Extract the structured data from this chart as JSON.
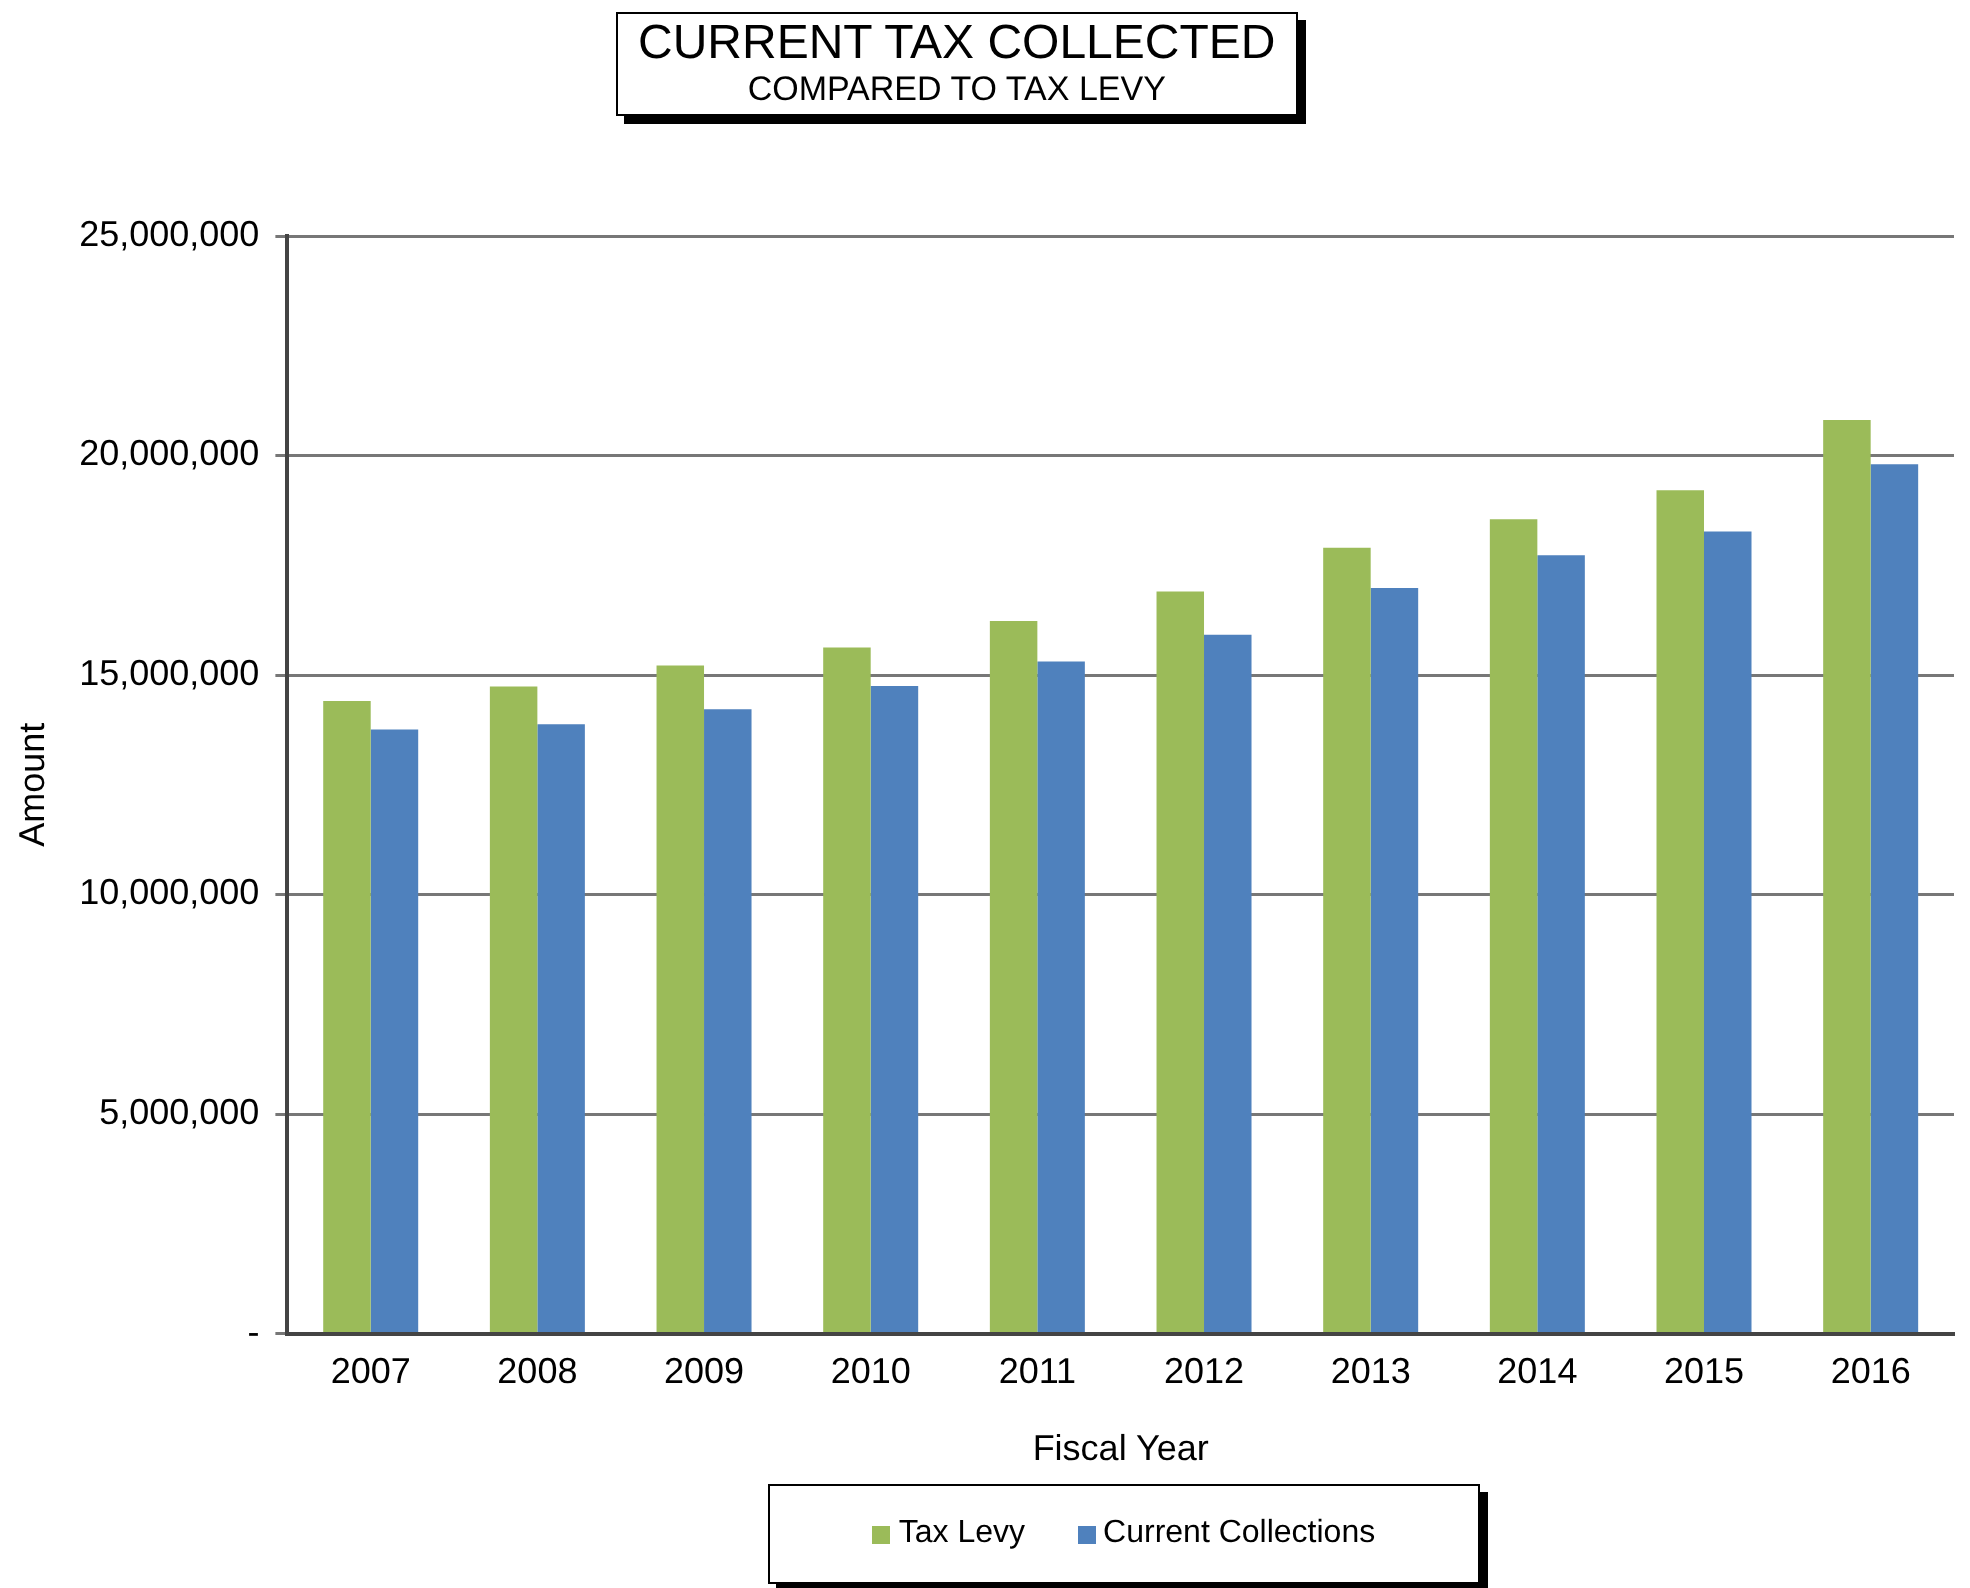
{
  "chart_data": {
    "type": "bar",
    "title": "CURRENT TAX COLLECTED",
    "subtitle": "COMPARED TO TAX LEVY",
    "xlabel": "Fiscal Year",
    "ylabel": "Amount",
    "categories": [
      "2007",
      "2008",
      "2009",
      "2010",
      "2011",
      "2012",
      "2013",
      "2014",
      "2015",
      "2016"
    ],
    "series": [
      {
        "name": "Tax Levy",
        "color": "#9bbb59",
        "values": [
          14410000,
          14740000,
          15220000,
          15630000,
          16230000,
          16900000,
          17900000,
          18550000,
          19210000,
          20810000
        ]
      },
      {
        "name": "Current Collections",
        "color": "#4f81bd",
        "values": [
          13760000,
          13880000,
          14220000,
          14750000,
          15310000,
          15920000,
          16980000,
          17730000,
          18270000,
          19800000
        ]
      }
    ],
    "ylim": [
      0,
      25000000
    ],
    "yticks": [
      {
        "value": 0,
        "label": "-"
      },
      {
        "value": 5000000,
        "label": "5,000,000"
      },
      {
        "value": 10000000,
        "label": "10,000,000"
      },
      {
        "value": 15000000,
        "label": "15,000,000"
      },
      {
        "value": 20000000,
        "label": "20,000,000"
      },
      {
        "value": 25000000,
        "label": "25,000,000"
      }
    ],
    "grid": "y",
    "legend": "bottom"
  }
}
